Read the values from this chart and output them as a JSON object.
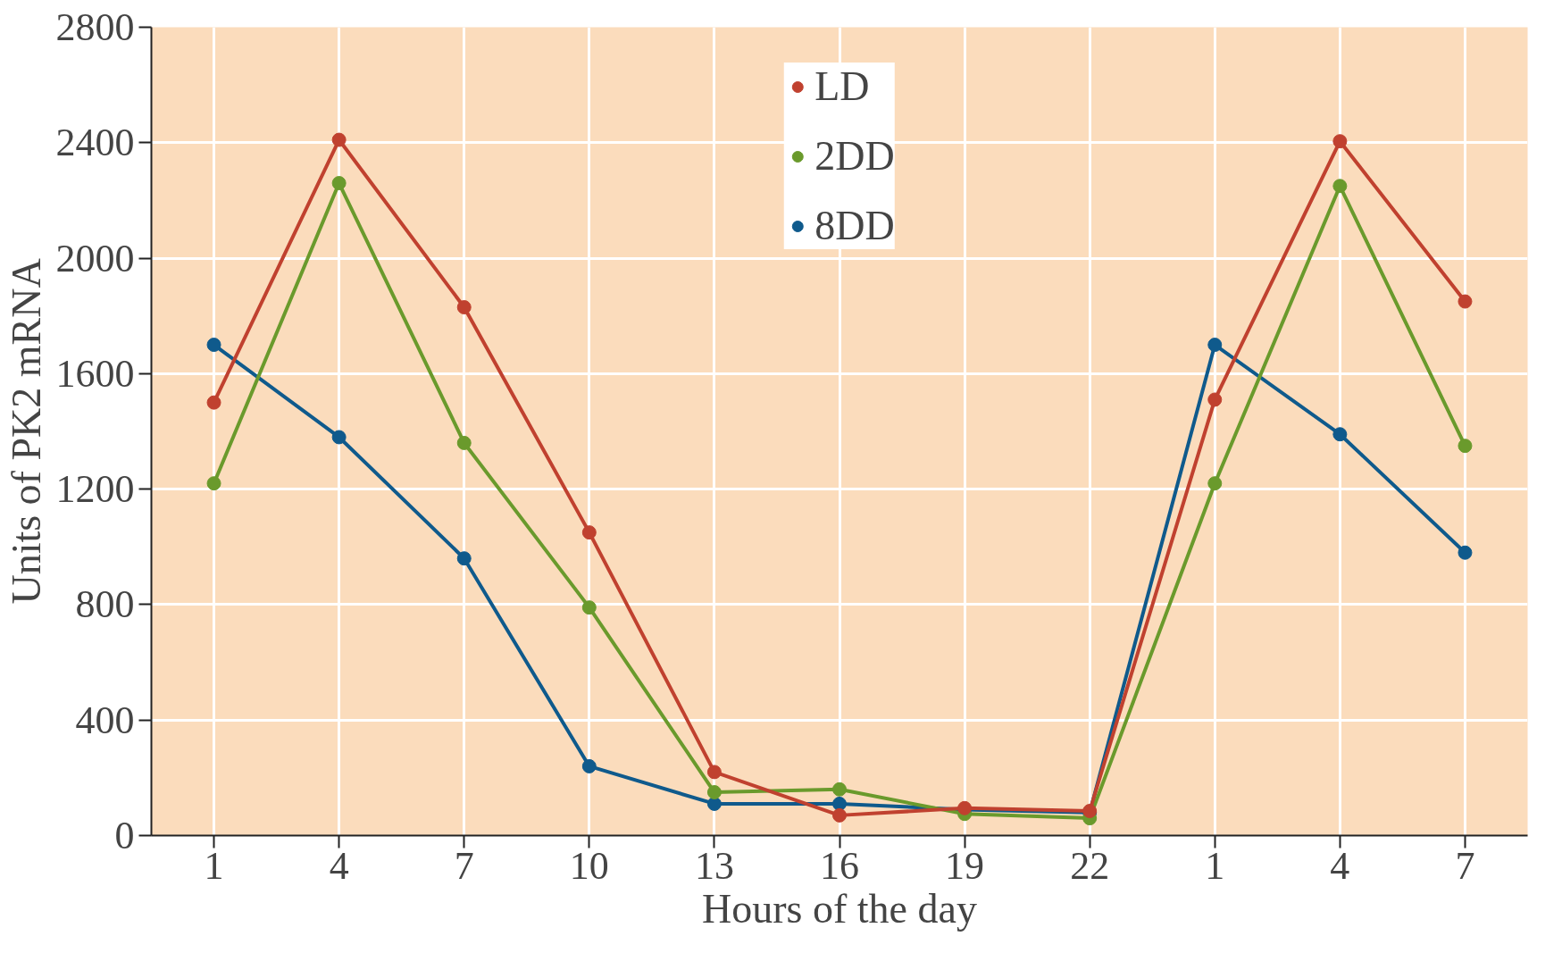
{
  "chart_data": {
    "type": "line",
    "xlabel": "Hours of the day",
    "ylabel": "Units of PK2 mRNA",
    "categories": [
      "1",
      "4",
      "7",
      "10",
      "13",
      "16",
      "19",
      "22",
      "1",
      "4",
      "7"
    ],
    "series": [
      {
        "name": "LD",
        "color": "#c0412f",
        "values": [
          1500,
          2410,
          1830,
          1050,
          220,
          70,
          95,
          85,
          1510,
          2405,
          1850
        ]
      },
      {
        "name": "2DD",
        "color": "#6a9a2c",
        "values": [
          1220,
          2260,
          1360,
          790,
          150,
          160,
          75,
          60,
          1220,
          2250,
          1350
        ]
      },
      {
        "name": "8DD",
        "color": "#0f5a8c",
        "values": [
          1700,
          1380,
          960,
          240,
          110,
          110,
          90,
          80,
          1700,
          1390,
          980
        ]
      }
    ],
    "ylim": [
      0,
      2800
    ],
    "yticks": [
      0,
      400,
      800,
      1200,
      1600,
      2000,
      2400,
      2800
    ],
    "grid": true,
    "legend": "top",
    "marker": "circle",
    "line_style": "solid"
  }
}
